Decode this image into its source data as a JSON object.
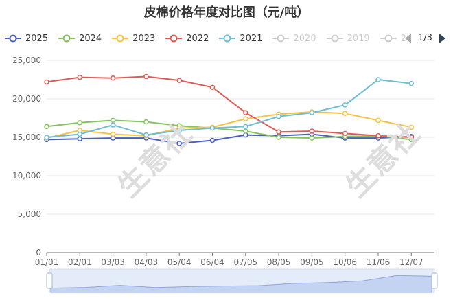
{
  "title": "皮棉价格年度对比图（元/吨）",
  "legend": {
    "items": [
      {
        "label": "2025",
        "color": "#4a5fbe",
        "active": true
      },
      {
        "label": "2024",
        "color": "#86c35e",
        "active": true
      },
      {
        "label": "2023",
        "color": "#f5c342",
        "active": true
      },
      {
        "label": "2022",
        "color": "#e05a55",
        "active": true
      },
      {
        "label": "2021",
        "color": "#6dbdd6",
        "active": true
      },
      {
        "label": "2020",
        "color": "#cccccc",
        "active": false
      },
      {
        "label": "2019",
        "color": "#cccccc",
        "active": false
      },
      {
        "label": "2",
        "color": "#cccccc",
        "active": false
      }
    ],
    "page": "1/3"
  },
  "watermarks": [
    "生意社",
    "生意社"
  ],
  "chart_data": {
    "type": "line",
    "title": "皮棉价格年度对比图（元/吨）",
    "xlabel": "",
    "ylabel": "",
    "ylim": [
      0,
      25000
    ],
    "yticks": [
      "0",
      "5,000",
      "10,000",
      "15,000",
      "20,000",
      "25,000"
    ],
    "xticks": [
      "01/01",
      "02/01",
      "03/03",
      "04/03",
      "05/04",
      "06/04",
      "07/05",
      "08/05",
      "09/05",
      "10/06",
      "11/06",
      "12/07"
    ],
    "grid": true,
    "legend_position": "top",
    "series": [
      {
        "name": "2025",
        "color": "#4a5fbe",
        "x": [
          "01/01",
          "02/01",
          "03/03",
          "04/03",
          "05/04",
          "06/04",
          "07/05",
          "08/05",
          "09/05",
          "10/06",
          "11/06",
          "12/07"
        ],
        "values": [
          14700,
          14800,
          14900,
          14900,
          14200,
          14600,
          15300,
          15200,
          15400,
          14900,
          14900,
          15100
        ]
      },
      {
        "name": "2024",
        "color": "#86c35e",
        "x": [
          "01/01",
          "02/01",
          "03/03",
          "04/03",
          "05/04",
          "06/04",
          "07/05",
          "08/05",
          "09/05",
          "10/06",
          "11/06",
          "12/07"
        ],
        "values": [
          16400,
          16900,
          17200,
          17000,
          16500,
          16200,
          15800,
          15000,
          14900,
          15100,
          15200,
          14700
        ]
      },
      {
        "name": "2023",
        "color": "#f5c342",
        "x": [
          "01/01",
          "02/01",
          "03/03",
          "04/03",
          "05/04",
          "06/04",
          "07/05",
          "08/05",
          "09/05",
          "10/06",
          "11/06",
          "12/07"
        ],
        "values": [
          14900,
          15900,
          15400,
          15200,
          16200,
          16300,
          17400,
          18000,
          18300,
          18100,
          17200,
          16300
        ]
      },
      {
        "name": "2022",
        "color": "#e05a55",
        "x": [
          "01/01",
          "02/01",
          "03/03",
          "04/03",
          "05/04",
          "06/04",
          "07/05",
          "08/05",
          "09/05",
          "10/06",
          "11/06",
          "12/07"
        ],
        "values": [
          22200,
          22800,
          22700,
          22900,
          22400,
          21500,
          18200,
          15700,
          15800,
          15500,
          15200,
          15000
        ]
      },
      {
        "name": "2021",
        "color": "#6dbdd6",
        "x": [
          "01/01",
          "02/01",
          "03/03",
          "04/03",
          "05/04",
          "06/04",
          "07/05",
          "08/05",
          "09/05",
          "10/06",
          "11/06",
          "12/07"
        ],
        "values": [
          15000,
          15400,
          16600,
          15300,
          15900,
          16200,
          16400,
          17700,
          18200,
          19200,
          22500,
          22000
        ]
      }
    ]
  }
}
